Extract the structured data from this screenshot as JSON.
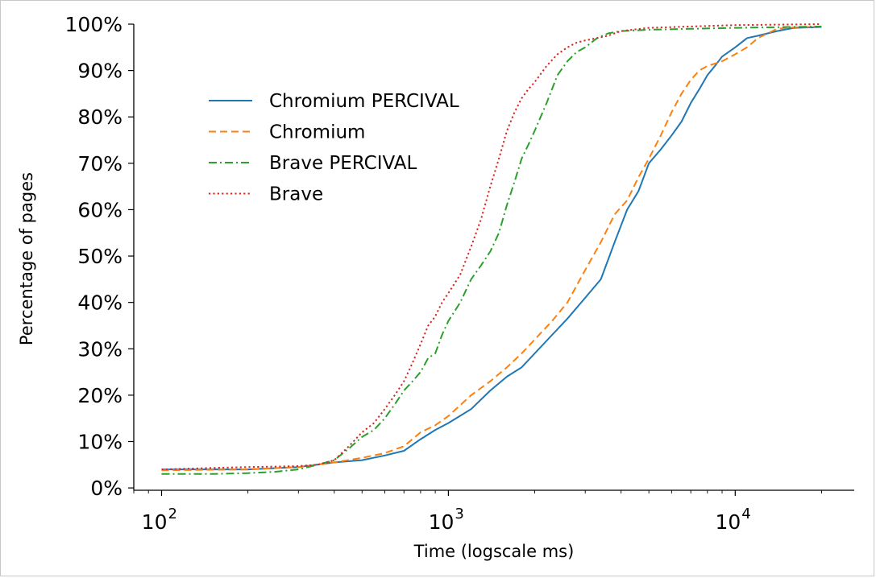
{
  "chart_data": {
    "type": "line",
    "title": "",
    "xlabel": "Time (logscale ms)",
    "ylabel": "Percentage of pages",
    "xscale": "log",
    "xlim": [
      80,
      26000
    ],
    "ylim": [
      -0.5,
      100
    ],
    "grid": false,
    "legend_position": "upper-left",
    "x_ticks": [
      {
        "value": 100,
        "base": "10",
        "exp": "2"
      },
      {
        "value": 1000,
        "base": "10",
        "exp": "3"
      },
      {
        "value": 10000,
        "base": "10",
        "exp": "4"
      }
    ],
    "y_ticks": [
      {
        "value": 0,
        "label": "0%"
      },
      {
        "value": 10,
        "label": "10%"
      },
      {
        "value": 20,
        "label": "20%"
      },
      {
        "value": 30,
        "label": "30%"
      },
      {
        "value": 40,
        "label": "40%"
      },
      {
        "value": 50,
        "label": "50%"
      },
      {
        "value": 60,
        "label": "60%"
      },
      {
        "value": 70,
        "label": "70%"
      },
      {
        "value": 80,
        "label": "80%"
      },
      {
        "value": 90,
        "label": "90%"
      },
      {
        "value": 100,
        "label": "100%"
      }
    ],
    "series": [
      {
        "name": "Chromium PERCIVAL",
        "color": "#1f77b4",
        "style": "solid",
        "x": [
          100,
          200,
          300,
          400,
          500,
          600,
          700,
          800,
          900,
          1000,
          1200,
          1400,
          1600,
          1800,
          2000,
          2300,
          2600,
          3000,
          3400,
          3800,
          4200,
          4600,
          5000,
          5500,
          6000,
          6500,
          7000,
          7500,
          8000,
          8500,
          9000,
          10000,
          11000,
          12000,
          14000,
          16000,
          20000
        ],
        "y": [
          4,
          4,
          4.5,
          5.5,
          6,
          7,
          8,
          10.5,
          12.5,
          14,
          17,
          21,
          24,
          26,
          29,
          33,
          36.5,
          41,
          45,
          53,
          60,
          64,
          70,
          73,
          76,
          79,
          83,
          86,
          89,
          91,
          93,
          95,
          97,
          97.5,
          98.5,
          99.2,
          99.4
        ]
      },
      {
        "name": "Chromium",
        "color": "#ff7f0e",
        "style": "dashed",
        "x": [
          100,
          200,
          300,
          400,
          500,
          600,
          700,
          800,
          900,
          1000,
          1200,
          1400,
          1600,
          1800,
          2000,
          2300,
          2600,
          3000,
          3400,
          3800,
          4200,
          4600,
          5000,
          5500,
          6000,
          6500,
          7000,
          7500,
          8000,
          8500,
          9000,
          10000,
          11000,
          12000,
          14000,
          16000,
          20000
        ],
        "y": [
          3.8,
          4,
          4.5,
          5.5,
          6.5,
          7.5,
          9,
          12,
          13.5,
          15.5,
          20,
          23,
          26,
          29,
          32,
          36,
          40,
          47,
          53,
          59,
          62,
          67,
          71,
          76,
          81,
          85,
          88,
          90,
          91,
          91.5,
          92,
          93.5,
          95,
          97,
          99,
          99.3,
          99.5
        ]
      },
      {
        "name": "Brave PERCIVAL",
        "color": "#2ca02c",
        "style": "dashdot",
        "x": [
          100,
          150,
          200,
          250,
          300,
          350,
          400,
          450,
          500,
          550,
          600,
          650,
          700,
          750,
          800,
          850,
          900,
          950,
          1000,
          1100,
          1200,
          1300,
          1400,
          1500,
          1600,
          1700,
          1800,
          1900,
          2000,
          2200,
          2400,
          2600,
          2800,
          3000,
          3300,
          3600,
          4000,
          5000,
          7000,
          10000,
          20000
        ],
        "y": [
          3,
          3,
          3.2,
          3.5,
          4,
          5,
          6,
          8.5,
          11,
          12.5,
          15,
          18,
          21,
          23,
          25,
          28,
          29,
          33,
          36,
          40,
          45,
          48,
          51,
          55,
          61,
          66,
          71,
          74,
          77,
          83,
          89,
          92,
          94,
          95,
          97,
          98,
          98.5,
          98.8,
          99,
          99.2,
          99.5
        ]
      },
      {
        "name": "Brave",
        "color": "#d62728",
        "style": "dotted",
        "x": [
          100,
          150,
          200,
          250,
          300,
          350,
          400,
          450,
          500,
          550,
          600,
          650,
          700,
          750,
          800,
          850,
          900,
          950,
          1000,
          1100,
          1200,
          1300,
          1400,
          1500,
          1600,
          1700,
          1800,
          1900,
          2000,
          2200,
          2400,
          2600,
          2800,
          3000,
          3300,
          3600,
          4000,
          5000,
          7000,
          10000,
          20000
        ],
        "y": [
          4,
          4.3,
          4.5,
          4.6,
          4.7,
          5,
          6,
          9,
          12,
          14,
          17,
          20,
          23,
          27,
          31,
          35,
          37,
          40,
          42,
          46,
          52,
          58,
          65,
          71,
          77,
          81,
          84,
          86,
          87.5,
          91,
          93.5,
          95,
          96,
          96.5,
          97,
          97.5,
          98.5,
          99.2,
          99.5,
          99.8,
          100
        ]
      }
    ]
  }
}
